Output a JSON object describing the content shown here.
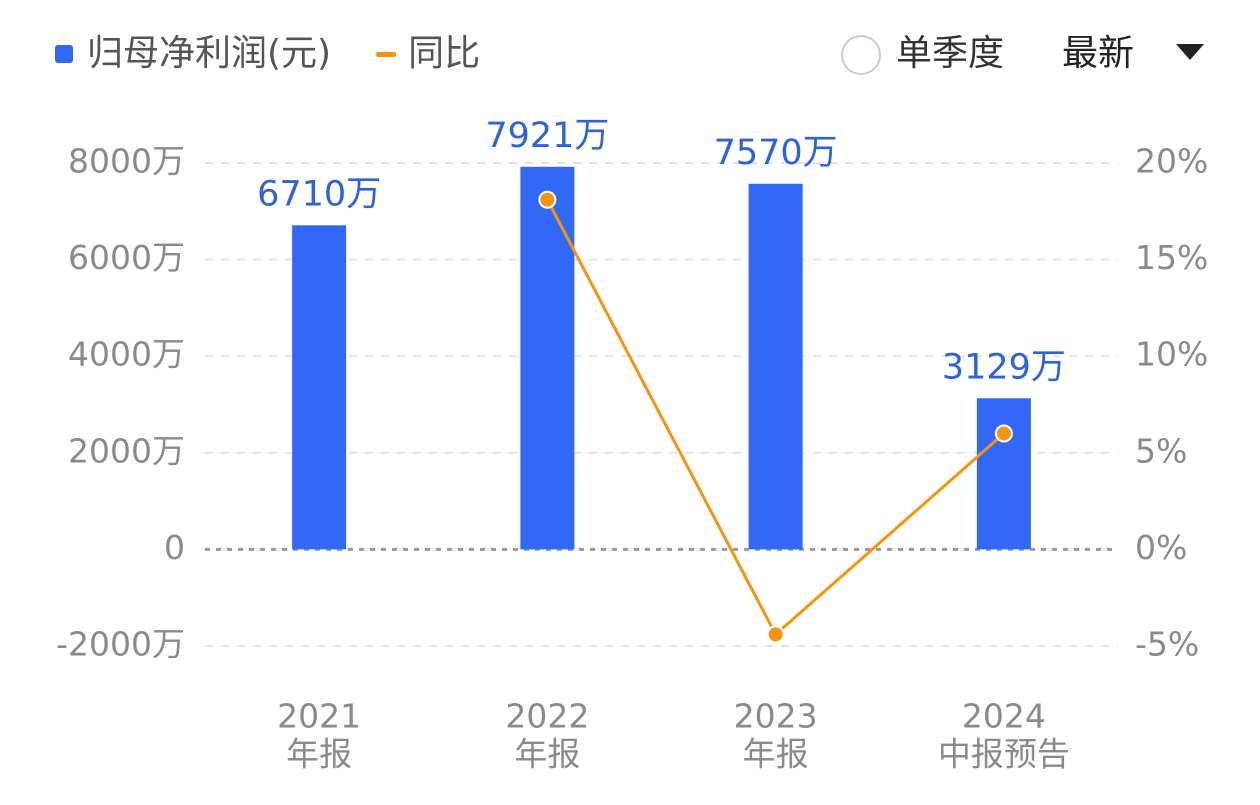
{
  "chart_data": {
    "type": "bar-line",
    "categories": [
      [
        "2021",
        "年报"
      ],
      [
        "2022",
        "年报"
      ],
      [
        "2023",
        "年报"
      ],
      [
        "2024",
        "中报预告"
      ]
    ],
    "series": [
      {
        "name": "归母净利润(元)",
        "type": "bar",
        "color": "#3168f6",
        "values": [
          6710,
          7921,
          7570,
          3129
        ],
        "value_labels": [
          "6710万",
          "7921万",
          "7570万",
          "3129万"
        ]
      },
      {
        "name": "同比",
        "type": "line",
        "axis": "y2",
        "color": "#f5950f",
        "values": [
          null,
          18.1,
          -4.4,
          6.0
        ]
      }
    ],
    "ylim": [
      -2000,
      8000
    ],
    "yticks": [
      {
        "value": -2000,
        "label": "-2000万"
      },
      0,
      {
        "value": 2000,
        "label": "2000万"
      },
      {
        "value": 4000,
        "label": "4000万"
      },
      {
        "value": 6000,
        "label": "6000万"
      },
      {
        "value": 8000,
        "label": "8000万"
      }
    ],
    "y2lim": [
      -5,
      20
    ],
    "y2ticks": [
      {
        "value": -5,
        "label": "-5%"
      },
      {
        "value": 0,
        "label": "0%"
      },
      {
        "value": 5,
        "label": "5%"
      },
      {
        "value": 10,
        "label": "10%"
      },
      {
        "value": 15,
        "label": "15%"
      },
      {
        "value": 20,
        "label": "20%"
      }
    ],
    "grid": true,
    "legend": "top-left"
  },
  "controls": {
    "quarterly": "单季度",
    "period": "最新"
  }
}
